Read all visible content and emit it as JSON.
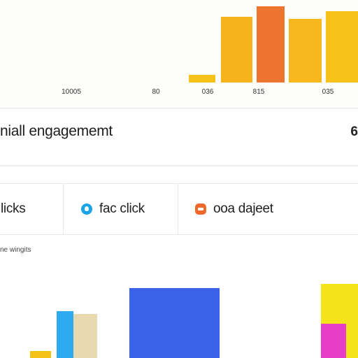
{
  "chart_top": {
    "type": "bar",
    "tick_labels": [
      "10005",
      "80",
      "036",
      "815",
      "035"
    ],
    "bars": [
      {
        "value": 10,
        "color": "#f6c21a"
      },
      {
        "value": 88,
        "color": "#f6b21b"
      },
      {
        "value": 102,
        "color": "#ee7530"
      },
      {
        "value": 85,
        "color": "#f6b81c"
      },
      {
        "value": 95,
        "color": "#f8c21c"
      }
    ],
    "ylim": [
      0,
      110
    ]
  },
  "engagement": {
    "title": "niall engagememt",
    "value": "6"
  },
  "cards": [
    {
      "label": "licks",
      "icon": "none"
    },
    {
      "label": "fac click",
      "icon": "drop-icon",
      "color": "#1aa3e8"
    },
    {
      "label": "ooa dajeet",
      "icon": "tag-icon",
      "color": "#ef6a2a"
    }
  ],
  "chart_bottom": {
    "title": "ne wingits",
    "bars": [
      {
        "value": 10,
        "color": "#f2c21a"
      },
      {
        "value": 66,
        "color": "#2eaaf0"
      },
      {
        "value": 62,
        "color": "#e9d9b0"
      },
      {
        "value": 98,
        "color": "#3a63ea"
      },
      {
        "value": 104,
        "color": "#f5e31c"
      },
      {
        "value": 48,
        "color": "#e63ec8"
      }
    ],
    "ylim": [
      0,
      110
    ]
  }
}
